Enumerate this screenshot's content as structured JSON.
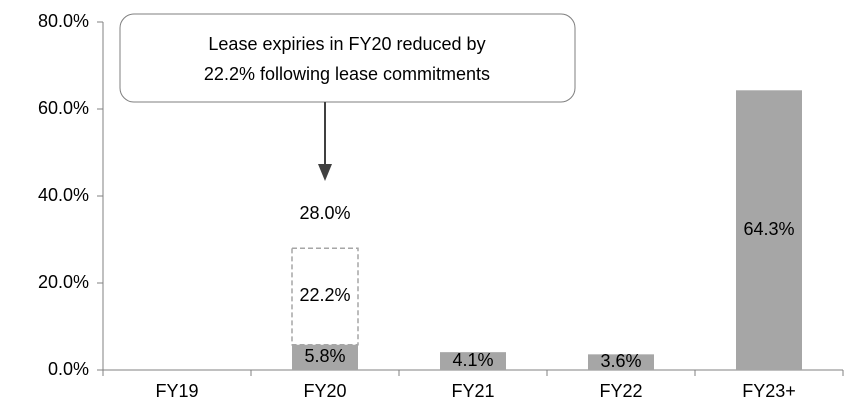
{
  "chart_data": {
    "type": "bar",
    "categories": [
      "FY19",
      "FY20",
      "FY21",
      "FY22",
      "FY23+"
    ],
    "series": [
      {
        "color": "#a6a6a6",
        "values": [
          null,
          5.8,
          4.1,
          3.6,
          64.3
        ],
        "value_labels": [
          null,
          "5.8%",
          "4.1%",
          "3.6%",
          "64.3%"
        ]
      },
      {
        "color": "#a6a6a6",
        "style": "dashed",
        "values": [
          null,
          22.2,
          null,
          null,
          null
        ],
        "value_labels": [
          null,
          "22.2%",
          null,
          null,
          null
        ]
      }
    ],
    "totals": [
      null,
      28.0,
      null,
      null,
      null
    ],
    "total_labels": [
      null,
      "28.0%",
      null,
      null,
      null
    ],
    "ylim": [
      0,
      80
    ],
    "yticks": [
      {
        "value": 0,
        "label": "0.0%"
      },
      {
        "value": 20,
        "label": "20.0%"
      },
      {
        "value": 40,
        "label": "40.0%"
      },
      {
        "value": 60,
        "label": "60.0%"
      },
      {
        "value": 80,
        "label": "80.0%"
      }
    ],
    "grid": false,
    "annotation": {
      "lines": [
        "Lease expiries in FY20 reduced by",
        "22.2% following lease commitments"
      ],
      "category": 1
    }
  }
}
